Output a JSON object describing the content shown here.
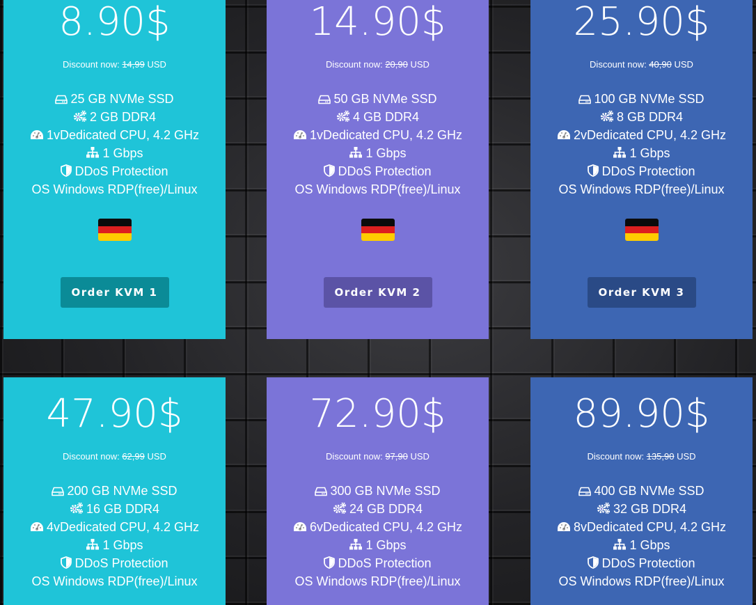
{
  "discount_prefix": "Discount now:",
  "currency_label": "USD",
  "plans": [
    {
      "price": "8.90$",
      "old_price": "14,99",
      "features": [
        "25 GB NVMe SSD",
        "2 GB DDR4",
        "1vDedicated CPU, 4.2 GHz",
        "1 Gbps",
        "DDoS Protection",
        "OS Windows RDP(free)/Linux"
      ],
      "order_label": "Order KVM 1"
    },
    {
      "price": "14.90$",
      "old_price": "20,90",
      "features": [
        "50 GB NVMe SSD",
        "4 GB DDR4",
        "1vDedicated CPU, 4.2 GHz",
        "1 Gbps",
        "DDoS Protection",
        "OS Windows RDP(free)/Linux"
      ],
      "order_label": "Order KVM 2"
    },
    {
      "price": "25.90$",
      "old_price": "40,90",
      "features": [
        "100 GB NVMe SSD",
        "8 GB DDR4",
        "2vDedicated CPU, 4.2 GHz",
        "1 Gbps",
        "DDoS Protection",
        "OS Windows RDP(free)/Linux"
      ],
      "order_label": "Order KVM 3"
    },
    {
      "price": "47.90$",
      "old_price": "62,99",
      "features": [
        "200 GB NVMe SSD",
        "16 GB DDR4",
        "4vDedicated CPU, 4.2 GHz",
        "1 Gbps",
        "DDoS Protection",
        "OS Windows RDP(free)/Linux"
      ]
    },
    {
      "price": "72.90$",
      "old_price": "97,90",
      "features": [
        "300 GB NVMe SSD",
        "24 GB DDR4",
        "6vDedicated CPU, 4.2 GHz",
        "1 Gbps",
        "DDoS Protection",
        "OS Windows RDP(free)/Linux"
      ]
    },
    {
      "price": "89.90$",
      "old_price": "135,90",
      "features": [
        "400 GB NVMe SSD",
        "32 GB DDR4",
        "8vDedicated CPU, 4.2 GHz",
        "1 Gbps",
        "DDoS Protection",
        "OS Windows RDP(free)/Linux"
      ]
    }
  ],
  "feature_icons": [
    "hdd-icon",
    "cogs-icon",
    "tachometer-icon",
    "sitemap-icon",
    "shield-icon",
    ""
  ],
  "flag": "germany-flag-icon",
  "colors": {
    "teal": "#1fc4d8",
    "purple": "#7b74d8",
    "blue": "#3d66b3",
    "teal_button": "#0b8b97",
    "purple_button": "#5b53a6",
    "blue_button": "#2a4a86"
  }
}
